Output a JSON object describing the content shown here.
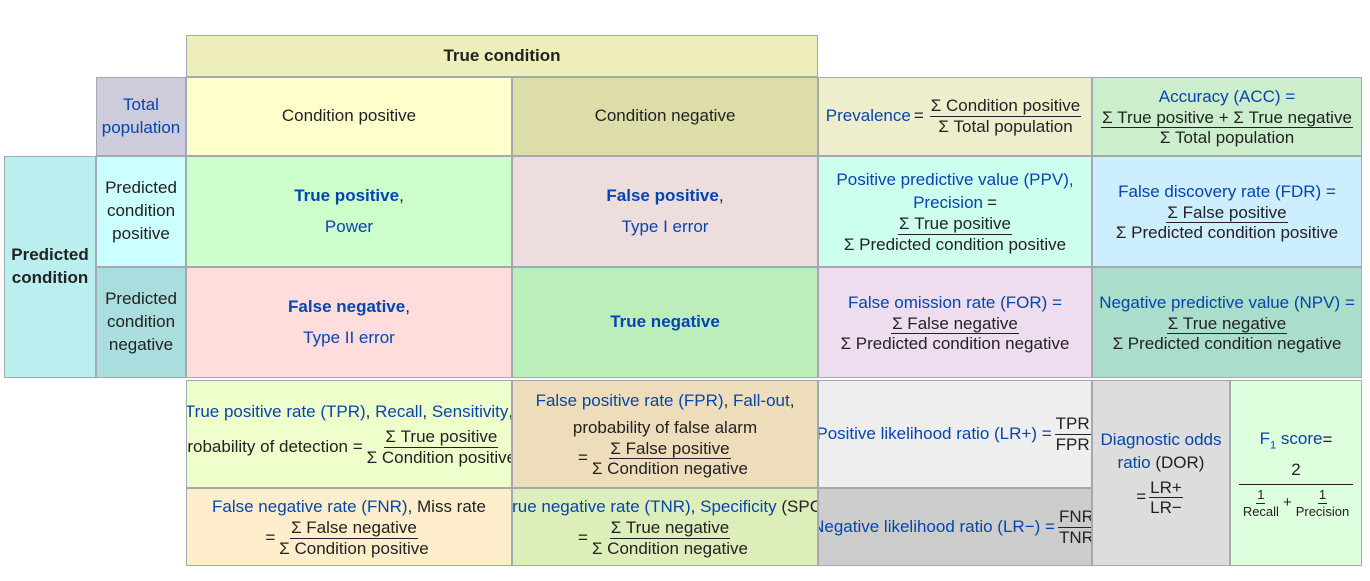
{
  "true_condition": "True condition",
  "predicted_condition": {
    "line1": "Predicted",
    "line2": "condition"
  },
  "total_population": {
    "line1": "Total",
    "line2": "population"
  },
  "condition_positive": "Condition positive",
  "condition_negative": "Condition negative",
  "prevalence": {
    "label": "Prevalence",
    "eq": "=",
    "num": "Σ Condition positive",
    "den": "Σ Total population"
  },
  "accuracy": {
    "label": "Accuracy (ACC) =",
    "num": "Σ True positive + Σ True negative",
    "den": "Σ Total population"
  },
  "pred_cond_pos": {
    "line1": "Predicted",
    "line2": "condition",
    "line3": "positive"
  },
  "pred_cond_neg": {
    "line1": "Predicted",
    "line2": "condition",
    "line3": "negative"
  },
  "true_positive": {
    "title": "True positive",
    "comma": ",",
    "sub": "Power"
  },
  "false_positive": {
    "title": "False positive",
    "comma": ",",
    "sub": "Type I error"
  },
  "false_negative": {
    "title": "False negative",
    "comma": ",",
    "sub": "Type II error"
  },
  "true_negative": {
    "title": "True negative"
  },
  "ppv": {
    "label": "Positive predictive value (PPV),",
    "label2": "Precision",
    "eq": "=",
    "num": "Σ True positive",
    "den": "Σ Predicted condition positive"
  },
  "fdr": {
    "label": "False discovery rate (FDR) =",
    "num": "Σ False positive",
    "den": "Σ Predicted condition positive"
  },
  "for": {
    "label": "False omission rate (FOR) =",
    "num": "Σ False negative",
    "den": "Σ Predicted condition negative"
  },
  "npv": {
    "label": "Negative predictive value (NPV) =",
    "num": "Σ True negative",
    "den": "Σ Predicted condition negative"
  },
  "tpr": {
    "label_a": "True positive rate (TPR)",
    "sep1": ", ",
    "label_b": "Recall",
    "sep2": ", ",
    "label_c": "Sensitivity",
    "sep3": ",",
    "label_d": "probability of detection =",
    "num": "Σ True positive",
    "den": "Σ Condition positive"
  },
  "fpr": {
    "label_a": "False positive rate (FPR)",
    "sep1": ", ",
    "label_b": "Fall-out",
    "sep2": ",",
    "label_c": "probability of false alarm",
    "eq": "=",
    "num": "Σ False positive",
    "den": "Σ Condition negative"
  },
  "fnr": {
    "label_a": "False negative rate (FNR)",
    "label_b": ", Miss rate",
    "eq": "=",
    "num": "Σ False negative",
    "den": "Σ Condition positive"
  },
  "tnr": {
    "label_a": "True negative rate (TNR)",
    "sep1": ", ",
    "label_b": "Specificity",
    "label_c": " (SPC)",
    "eq": "=",
    "num": "Σ True negative",
    "den": "Σ Condition negative"
  },
  "lr_pos": {
    "label": "Positive likelihood ratio (LR+) =",
    "num": "TPR",
    "den": "FPR"
  },
  "lr_neg": {
    "label": "Negative likelihood ratio (LR−) =",
    "num": "FNR",
    "den": "TNR"
  },
  "dor": {
    "line1": "Diagnostic odds",
    "line2": "ratio",
    "line2b": " (DOR)",
    "eq": "=",
    "num": "LR+",
    "den": "LR−"
  },
  "f1": {
    "label_a": "F",
    "label_sub": "1",
    "label_b": " score",
    "eq": " =",
    "num": "2",
    "den_a_num": "1",
    "den_a_den": "Recall",
    "plus": "+",
    "den_b_num": "1",
    "den_b_den": "Precision"
  },
  "colors": {
    "true_condition": "#eeeebb",
    "total_population": "#ccccdd",
    "predicted_condition": "#bbeeee",
    "condition_positive": "#ffffcc",
    "condition_negative": "#ddddaa",
    "prevalence": "#eeeecc",
    "accuracy": "#cceecc",
    "pred_cond_pos": "#ccffff",
    "pred_cond_neg": "#aadddd",
    "true_positive": "#ccffcc",
    "false_positive": "#eedddd",
    "false_negative": "#ffdddd",
    "true_negative": "#bbeebb",
    "ppv": "#ccffee",
    "fdr": "#cceeff",
    "for": "#eeddee",
    "npv": "#aaddcc",
    "tpr": "#eeffcc",
    "fpr": "#eeddbb",
    "fnr": "#ffeecc",
    "tnr": "#ddeebb",
    "lr_pos": "#eeeeee",
    "lr_neg": "#cccccc",
    "dor": "#dddddd",
    "f1": "#ddffdd"
  }
}
